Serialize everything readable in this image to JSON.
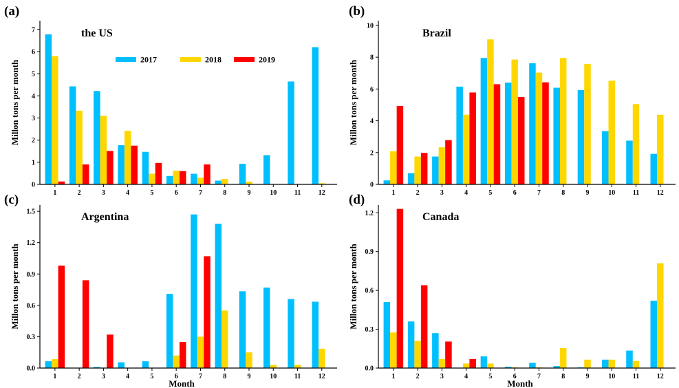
{
  "legend": [
    "2017",
    "2018",
    "2019"
  ],
  "colors": [
    "#00bfff",
    "#ffd700",
    "#ff0000"
  ],
  "chart_data": [
    {
      "type": "bar",
      "panel_label": "(a)",
      "title": "the US",
      "xlabel": "",
      "ylabel": "Millon tons per month",
      "categories": [
        "1",
        "2",
        "3",
        "4",
        "5",
        "6",
        "7",
        "8",
        "9",
        "10",
        "11",
        "12"
      ],
      "ylim": [
        0,
        7.4
      ],
      "yticks": [
        0,
        1,
        2,
        3,
        4,
        5,
        6,
        7
      ],
      "ytick_labels": [
        "0",
        "1",
        "2",
        "3",
        "4",
        "5",
        "6",
        "7"
      ],
      "legend_position": "top-center",
      "grid": false,
      "series": [
        {
          "name": "2017",
          "values": [
            6.78,
            4.43,
            4.22,
            1.77,
            1.47,
            0.38,
            0.48,
            0.17,
            0.93,
            1.32,
            4.65,
            6.2
          ]
        },
        {
          "name": "2018",
          "values": [
            5.8,
            3.33,
            3.1,
            2.42,
            0.48,
            0.62,
            0.3,
            0.25,
            0.12,
            0.02,
            0,
            0.05
          ]
        },
        {
          "name": "2019",
          "values": [
            0.13,
            0.9,
            1.51,
            1.75,
            0.97,
            0.6,
            0.9,
            0,
            0,
            0,
            0,
            0
          ]
        }
      ]
    },
    {
      "type": "bar",
      "panel_label": "(b)",
      "title": "Brazil",
      "xlabel": "",
      "ylabel": "Millon tons per month",
      "categories": [
        "1",
        "2",
        "3",
        "4",
        "5",
        "6",
        "7",
        "8",
        "9",
        "10",
        "11",
        "12"
      ],
      "ylim": [
        0,
        10.3
      ],
      "yticks": [
        0,
        2,
        4,
        6,
        8,
        10
      ],
      "ytick_labels": [
        "0",
        "2",
        "4",
        "6",
        "8",
        "10"
      ],
      "grid": false,
      "series": [
        {
          "name": "2017",
          "values": [
            0.25,
            0.7,
            1.75,
            6.15,
            7.95,
            6.4,
            7.62,
            6.08,
            5.93,
            3.35,
            2.75,
            1.92
          ]
        },
        {
          "name": "2018",
          "values": [
            2.08,
            1.75,
            2.33,
            4.38,
            9.12,
            7.85,
            7.03,
            7.95,
            7.58,
            6.52,
            5.05,
            4.38
          ]
        },
        {
          "name": "2019",
          "values": [
            4.93,
            1.98,
            2.78,
            5.78,
            6.3,
            5.5,
            6.42,
            0,
            0,
            0,
            0,
            0
          ]
        }
      ]
    },
    {
      "type": "bar",
      "panel_label": "(c)",
      "title": "Argentina",
      "xlabel": "Month",
      "ylabel": "Millon tons per month",
      "categories": [
        "1",
        "2",
        "3",
        "4",
        "5",
        "6",
        "7",
        "8",
        "9",
        "10",
        "11",
        "12"
      ],
      "ylim": [
        0,
        1.56
      ],
      "yticks": [
        0,
        0.3,
        0.6,
        0.9,
        1.2,
        1.5
      ],
      "ytick_labels": [
        "0.0",
        "0.3",
        "0.6",
        "0.9",
        "1.2",
        "1.5"
      ],
      "grid": false,
      "series": [
        {
          "name": "2017",
          "values": [
            0.065,
            0,
            0.01,
            0.055,
            0.065,
            0.71,
            1.47,
            1.38,
            0.735,
            0.77,
            0.66,
            0.635
          ]
        },
        {
          "name": "2018",
          "values": [
            0.085,
            0,
            0,
            0,
            0,
            0.12,
            0.3,
            0.55,
            0.15,
            0.03,
            0.03,
            0.185
          ]
        },
        {
          "name": "2019",
          "values": [
            0.98,
            0.84,
            0.32,
            0,
            0,
            0.25,
            1.07,
            0,
            0,
            0,
            0,
            0
          ]
        }
      ]
    },
    {
      "type": "bar",
      "panel_label": "(d)",
      "title": "Canada",
      "xlabel": "Month",
      "ylabel": "Millon tons per month",
      "categories": [
        "1",
        "2",
        "3",
        "4",
        "5",
        "6",
        "7",
        "8",
        "9",
        "10",
        "11",
        "12"
      ],
      "ylim": [
        0,
        1.26
      ],
      "yticks": [
        0,
        0.3,
        0.6,
        0.9,
        1.2
      ],
      "ytick_labels": [
        "0.0",
        "0.3",
        "0.6",
        "0.9",
        "1.2"
      ],
      "grid": false,
      "series": [
        {
          "name": "2017",
          "values": [
            0.51,
            0.36,
            0.27,
            0,
            0.09,
            0.01,
            0.04,
            0.015,
            0.005,
            0.065,
            0.135,
            0.52
          ]
        },
        {
          "name": "2018",
          "values": [
            0.275,
            0.21,
            0.07,
            0.035,
            0.035,
            0.005,
            0.005,
            0.155,
            0.065,
            0.065,
            0.055,
            0.81
          ]
        },
        {
          "name": "2019",
          "values": [
            1.23,
            0.64,
            0.205,
            0.07,
            0,
            0,
            0,
            0,
            0,
            0,
            0,
            0
          ]
        }
      ]
    }
  ]
}
